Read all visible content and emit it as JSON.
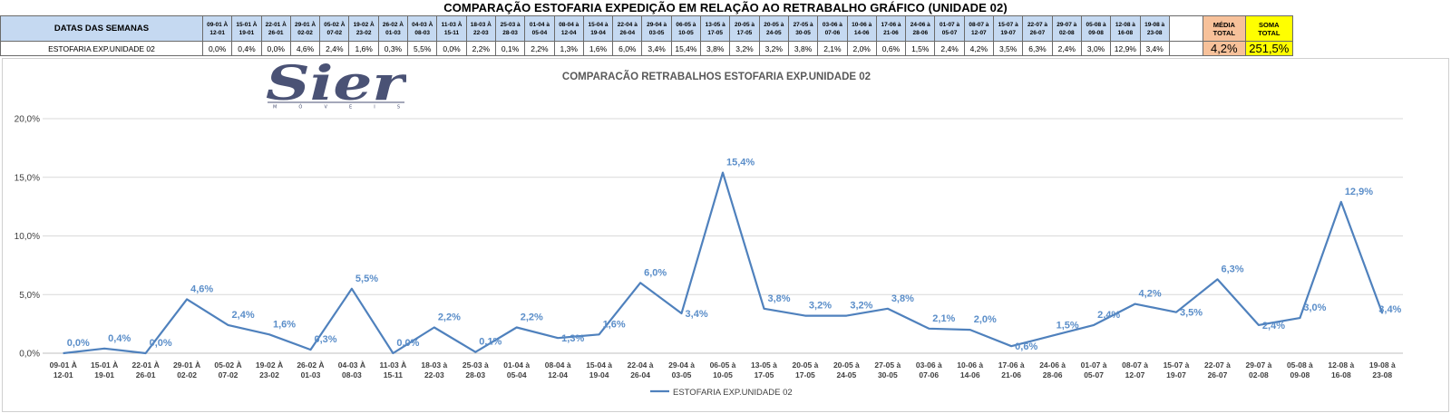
{
  "page_title": "COMPARAÇÃO ESTOFARIA EXPEDIÇÃO  EM RELAÇÃO AO RETRABALHO GRÁFICO (UNIDADE 02)",
  "table": {
    "header_label": "DATAS DAS SEMANAS",
    "row_label": "ESTOFARIA EXP.UNIDADE 02",
    "weeks": [
      {
        "l1": "09-01 À",
        "l2": "12-01"
      },
      {
        "l1": "15-01 À",
        "l2": "19-01"
      },
      {
        "l1": "22-01 À",
        "l2": "26-01"
      },
      {
        "l1": "29-01 À",
        "l2": "02-02"
      },
      {
        "l1": "05-02 À",
        "l2": "07-02"
      },
      {
        "l1": "19-02 À",
        "l2": "23-02"
      },
      {
        "l1": "26-02 À",
        "l2": "01-03"
      },
      {
        "l1": "04-03 À",
        "l2": "08-03"
      },
      {
        "l1": "11-03 À",
        "l2": "15-11"
      },
      {
        "l1": "18-03 À",
        "l2": "22-03"
      },
      {
        "l1": "25-03 à",
        "l2": "28-03"
      },
      {
        "l1": "01-04 à",
        "l2": "05-04"
      },
      {
        "l1": "08-04 à",
        "l2": "12-04"
      },
      {
        "l1": "15-04 à",
        "l2": "19-04"
      },
      {
        "l1": "22-04 à",
        "l2": "26-04"
      },
      {
        "l1": "29-04 à",
        "l2": "03-05"
      },
      {
        "l1": "06-05 à",
        "l2": "10-05"
      },
      {
        "l1": "13-05 à",
        "l2": "17-05"
      },
      {
        "l1": "20-05 à",
        "l2": "17-05"
      },
      {
        "l1": "20-05 à",
        "l2": "24-05"
      },
      {
        "l1": "27-05 à",
        "l2": "30-05"
      },
      {
        "l1": "03-06 à",
        "l2": "07-06"
      },
      {
        "l1": "10-06 à",
        "l2": "14-06"
      },
      {
        "l1": "17-06 à",
        "l2": "21-06"
      },
      {
        "l1": "24-06 à",
        "l2": "28-06"
      },
      {
        "l1": "01-07 à",
        "l2": "05-07"
      },
      {
        "l1": "08-07 à",
        "l2": "12-07"
      },
      {
        "l1": "15-07 à",
        "l2": "19-07"
      },
      {
        "l1": "22-07 à",
        "l2": "26-07"
      },
      {
        "l1": "29-07 à",
        "l2": "02-08"
      },
      {
        "l1": "05-08 à",
        "l2": "09-08"
      },
      {
        "l1": "12-08 à",
        "l2": "16-08"
      },
      {
        "l1": "19-08 à",
        "l2": "23-08"
      }
    ],
    "values": [
      "0,0%",
      "0,4%",
      "0,0%",
      "4,6%",
      "2,4%",
      "1,6%",
      "0,3%",
      "5,5%",
      "0,0%",
      "2,2%",
      "0,1%",
      "2,2%",
      "1,3%",
      "1,6%",
      "6,0%",
      "3,4%",
      "15,4%",
      "3,8%",
      "3,2%",
      "3,2%",
      "3,8%",
      "2,1%",
      "2,0%",
      "0,6%",
      "1,5%",
      "2,4%",
      "4,2%",
      "3,5%",
      "6,3%",
      "2,4%",
      "3,0%",
      "12,9%",
      "3,4%"
    ],
    "media_header_1": "MÉDIA",
    "media_header_2": "TOTAL",
    "soma_header_1": "SOMA",
    "soma_header_2": "TOTAL",
    "media_value": "4,2%",
    "soma_value": "251,5%",
    "colors": {
      "header_bg": "#c5d9f1",
      "media_bg": "#f7c19a",
      "soma_bg": "#ffff00"
    }
  },
  "logo": {
    "text": "Sier",
    "subtext": "M Ó V E I S",
    "color": "#4a5275"
  },
  "chart_data": {
    "type": "line",
    "title": "COMPARACÃO RETRABALHOS  ESTOFARIA EXP.UNIDADE 02",
    "xlabel": "",
    "ylabel": "",
    "ylim": [
      0,
      20
    ],
    "yticks": [
      0,
      5,
      10,
      15,
      20
    ],
    "ytick_labels": [
      "0,0%",
      "5,0%",
      "10,0%",
      "15,0%",
      "20,0%"
    ],
    "categories": [
      [
        "09-01 À",
        "12-01"
      ],
      [
        "15-01 À",
        "19-01"
      ],
      [
        "22-01 À",
        "26-01"
      ],
      [
        "29-01 À",
        "02-02"
      ],
      [
        "05-02 À",
        "07-02"
      ],
      [
        "19-02 À",
        "23-02"
      ],
      [
        "26-02 À",
        "01-03"
      ],
      [
        "04-03 À",
        "08-03"
      ],
      [
        "11-03 À",
        "15-11"
      ],
      [
        "18-03 à",
        "22-03"
      ],
      [
        "25-03 à",
        "28-03"
      ],
      [
        "01-04 à",
        "05-04"
      ],
      [
        "08-04 à",
        "12-04"
      ],
      [
        "15-04 à",
        "19-04"
      ],
      [
        "22-04 à",
        "26-04"
      ],
      [
        "29-04 à",
        "03-05"
      ],
      [
        "06-05 à",
        "10-05"
      ],
      [
        "13-05 à",
        "17-05"
      ],
      [
        "20-05 à",
        "17-05"
      ],
      [
        "20-05 à",
        "24-05"
      ],
      [
        "27-05 à",
        "30-05"
      ],
      [
        "03-06 à",
        "07-06"
      ],
      [
        "10-06 à",
        "14-06"
      ],
      [
        "17-06 à",
        "21-06"
      ],
      [
        "24-06 à",
        "28-06"
      ],
      [
        "01-07 à",
        "05-07"
      ],
      [
        "08-07 à",
        "12-07"
      ],
      [
        "15-07 à",
        "19-07"
      ],
      [
        "22-07 à",
        "26-07"
      ],
      [
        "29-07 à",
        "02-08"
      ],
      [
        "05-08 à",
        "09-08"
      ],
      [
        "12-08 à",
        "16-08"
      ],
      [
        "19-08 à",
        "23-08"
      ]
    ],
    "series": [
      {
        "name": "ESTOFARIA EXP.UNIDADE 02",
        "values": [
          0.0,
          0.4,
          0.0,
          4.6,
          2.4,
          1.6,
          0.3,
          5.5,
          0.0,
          2.2,
          0.1,
          2.2,
          1.3,
          1.6,
          6.0,
          3.4,
          15.4,
          3.8,
          3.2,
          3.2,
          3.8,
          2.1,
          2.0,
          0.6,
          1.5,
          2.4,
          4.2,
          3.5,
          6.3,
          2.4,
          3.0,
          12.9,
          3.4
        ],
        "labels": [
          "0,0%",
          "0,4%",
          "0,0%",
          "4,6%",
          "2,4%",
          "1,6%",
          "0,3%",
          "5,5%",
          "0,0%",
          "2,2%",
          "0,1%",
          "2,2%",
          "1,3%",
          "1,6%",
          "6,0%",
          "3,4%",
          "15,4%",
          "3,8%",
          "3,2%",
          "3,2%",
          "3,8%",
          "2,1%",
          "2,0%",
          "0,6%",
          "1,5%",
          "2,4%",
          "4,2%",
          "3,5%",
          "6,3%",
          "2,4%",
          "3,0%",
          "12,9%",
          "3,4%"
        ],
        "color": "#4f81bd"
      }
    ],
    "grid": true,
    "legend": "bottom",
    "label_color": "#5b8ec9"
  }
}
